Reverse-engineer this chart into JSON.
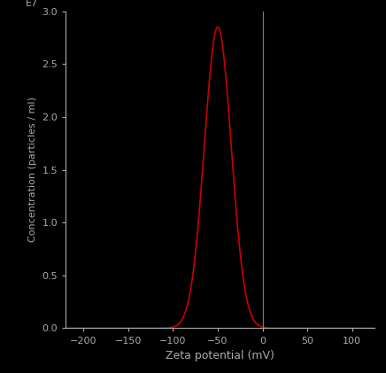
{
  "background_color": "#000000",
  "text_color": "#aaaaaa",
  "line_color": "#cc0000",
  "vline_color": "#777777",
  "curve_peak": -50,
  "curve_sigma": 15,
  "curve_amplitude": 2.85,
  "xlim": [
    -220,
    125
  ],
  "ylim": [
    0,
    3.0
  ],
  "xticks": [
    -200,
    -150,
    -100,
    -50,
    0,
    50,
    100
  ],
  "yticks": [
    0.0,
    0.5,
    1.0,
    1.5,
    2.0,
    2.5,
    3.0
  ],
  "xlabel": "Zeta potential (mV)",
  "ylabel": "Concentration (particles / ml)",
  "exponent_label": "E7",
  "vline_x": 0,
  "figsize": [
    4.36,
    4.21
  ],
  "dpi": 100
}
